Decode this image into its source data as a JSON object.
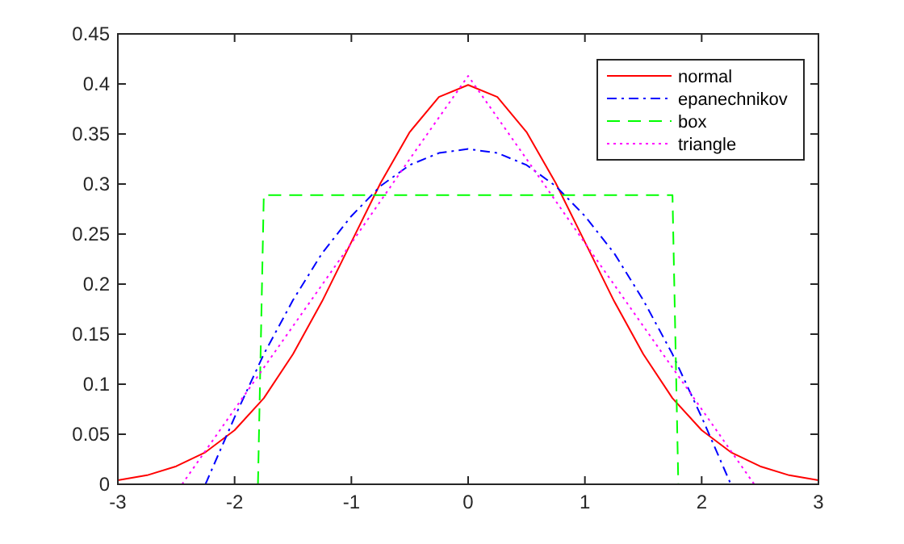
{
  "chart_data": {
    "type": "line",
    "xlim": [
      -3,
      3
    ],
    "ylim": [
      0,
      0.45
    ],
    "xticks": [
      -3,
      -2,
      -1,
      0,
      1,
      2,
      3
    ],
    "yticks": [
      0,
      0.05,
      0.1,
      0.15,
      0.2,
      0.25,
      0.3,
      0.35,
      0.4,
      0.45
    ],
    "grid": false,
    "legend": "top right",
    "marker": "none",
    "series": [
      {
        "name": "normal",
        "color": "#ff0000",
        "line_style": "solid",
        "x": [
          -3,
          -2.75,
          -2.5,
          -2.25,
          -2,
          -1.75,
          -1.5,
          -1.25,
          -1,
          -0.75,
          -0.5,
          -0.25,
          0,
          0.25,
          0.5,
          0.75,
          1,
          1.25,
          1.5,
          1.75,
          2,
          2.25,
          2.5,
          2.75,
          3
        ],
        "values": [
          0.004,
          0.009,
          0.018,
          0.032,
          0.054,
          0.086,
          0.13,
          0.183,
          0.242,
          0.301,
          0.352,
          0.387,
          0.399,
          0.387,
          0.352,
          0.301,
          0.242,
          0.183,
          0.13,
          0.086,
          0.054,
          0.032,
          0.018,
          0.009,
          0.004
        ]
      },
      {
        "name": "epanechnikov",
        "color": "#0000ff",
        "line_style": "dashdot",
        "x": [
          -2.25,
          -2,
          -1.75,
          -1.5,
          -1.25,
          -1,
          -0.75,
          -0.5,
          -0.25,
          0,
          0.25,
          0.5,
          0.75,
          1,
          1.25,
          1.5,
          1.75,
          2,
          2.25
        ],
        "values": [
          0,
          0.067,
          0.13,
          0.184,
          0.231,
          0.268,
          0.298,
          0.319,
          0.331,
          0.335,
          0.331,
          0.319,
          0.298,
          0.268,
          0.231,
          0.184,
          0.13,
          0.067,
          0
        ]
      },
      {
        "name": "box",
        "color": "#00ff00",
        "line_style": "dashed",
        "x": [
          -1.8,
          -1.75,
          1.75,
          1.8
        ],
        "values": [
          0,
          0.289,
          0.289,
          0
        ]
      },
      {
        "name": "triangle",
        "color": "#ff00ff",
        "line_style": "dotted",
        "x": [
          -2.45,
          -2,
          -1.5,
          -1,
          -0.5,
          0,
          0.5,
          1,
          1.5,
          2,
          2.45
        ],
        "values": [
          0,
          0.075,
          0.158,
          0.241,
          0.325,
          0.408,
          0.325,
          0.241,
          0.158,
          0.075,
          0
        ]
      }
    ]
  }
}
